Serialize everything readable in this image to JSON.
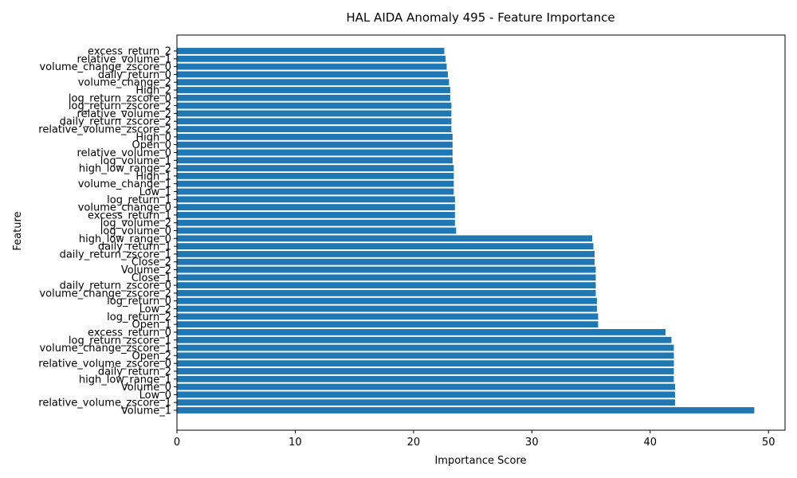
{
  "chart_data": {
    "type": "bar",
    "orientation": "horizontal",
    "title": "HAL AIDA Anomaly 495 - Feature Importance",
    "xlabel": "Importance Score",
    "ylabel": "Feature",
    "xlim": [
      0,
      51.4
    ],
    "xticks": [
      0,
      10,
      20,
      30,
      40,
      50
    ],
    "bar_color": "#1f77b4",
    "grid": false,
    "categories": [
      "Volume_1",
      "relative_volume_zscore_1",
      "Low_0",
      "Volume_0",
      "high_low_range_1",
      "daily_return_2",
      "relative_volume_zscore_0",
      "Open_2",
      "volume_change_zscore_1",
      "log_return_zscore_1",
      "excess_return_0",
      "Open_1",
      "log_return_2",
      "Low_2",
      "log_return_0",
      "volume_change_zscore_2",
      "daily_return_zscore_0",
      "Close_1",
      "Volume_2",
      "Close_2",
      "daily_return_zscore_1",
      "daily_return_1",
      "high_low_range_0",
      "log_volume_0",
      "log_volume_2",
      "excess_return_1",
      "volume_change_0",
      "log_return_1",
      "Low_1",
      "volume_change_1",
      "High_1",
      "high_low_range_2",
      "log_volume_1",
      "relative_volume_0",
      "Open_0",
      "High_0",
      "relative_volume_zscore_2",
      "daily_return_zscore_2",
      "relative_volume_2",
      "log_return_zscore_2",
      "log_return_zscore_0",
      "High_2",
      "volume_change_2",
      "daily_return_0",
      "volume_change_zscore_0",
      "relative_volume_1",
      "excess_return_2"
    ],
    "values": [
      48.8,
      42.1,
      42.1,
      42.1,
      42.0,
      42.0,
      42.0,
      42.0,
      42.0,
      41.8,
      41.3,
      35.6,
      35.6,
      35.5,
      35.5,
      35.4,
      35.4,
      35.4,
      35.4,
      35.3,
      35.3,
      35.2,
      35.1,
      23.6,
      23.5,
      23.5,
      23.5,
      23.5,
      23.4,
      23.4,
      23.4,
      23.4,
      23.3,
      23.3,
      23.3,
      23.3,
      23.2,
      23.2,
      23.2,
      23.2,
      23.1,
      23.1,
      23.0,
      22.9,
      22.8,
      22.7,
      22.6
    ]
  }
}
